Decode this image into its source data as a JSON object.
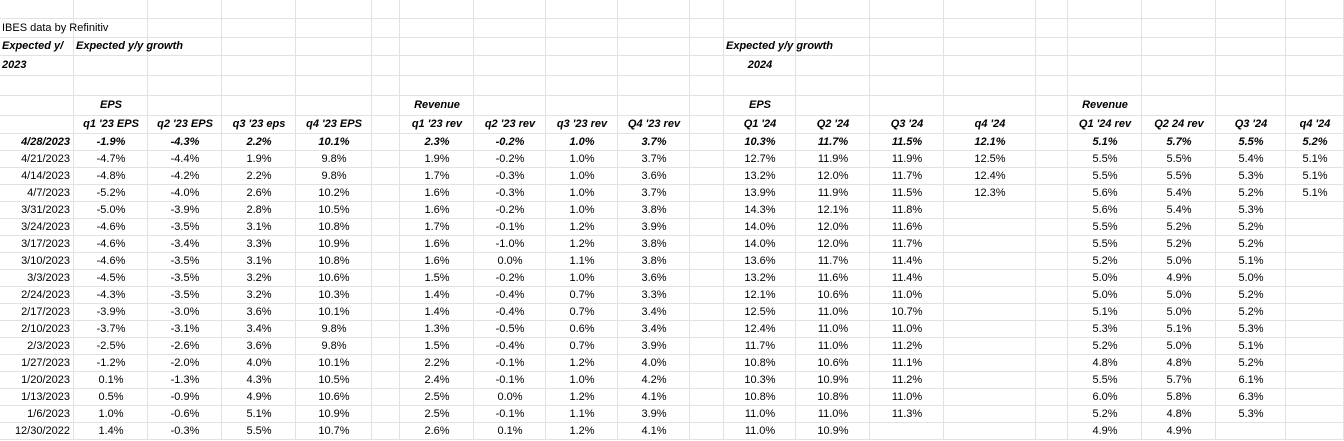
{
  "header": {
    "source": "IBES data by Refinitiv",
    "label_2023_clipped": "Expected y/",
    "label_2023": "Expected y/y growth",
    "label_2024": "Expected y/y growth",
    "year_2023": "2023",
    "year_2024": "2024"
  },
  "groups": [
    "EPS",
    "Revenue",
    "EPS",
    "Revenue"
  ],
  "table": {
    "columns": [
      "q1 '23 EPS",
      "q2 '23 EPS",
      "q3 '23 eps",
      "q4 '23 EPS",
      "q1 '23 rev",
      "q2 '23 rev",
      "q3 '23 rev",
      "Q4 '23 rev",
      "Q1 '24",
      "Q2 '24",
      "Q3 '24",
      "q4 '24",
      "Q1 '24 rev",
      "Q2 24 rev",
      "Q3 '24",
      "q4 '24"
    ],
    "rows": [
      [
        "4/28/2023",
        "-1.9%",
        "-4.3%",
        "2.2%",
        "10.1%",
        "2.3%",
        "-0.2%",
        "1.0%",
        "3.7%",
        "10.3%",
        "11.7%",
        "11.5%",
        "12.1%",
        "5.1%",
        "5.7%",
        "5.5%",
        "5.2%"
      ],
      [
        "4/21/2023",
        "-4.7%",
        "-4.4%",
        "1.9%",
        "9.8%",
        "1.9%",
        "-0.2%",
        "1.0%",
        "3.7%",
        "12.7%",
        "11.9%",
        "11.9%",
        "12.5%",
        "5.5%",
        "5.5%",
        "5.4%",
        "5.1%"
      ],
      [
        "4/14/2023",
        "-4.8%",
        "-4.2%",
        "2.2%",
        "9.8%",
        "1.7%",
        "-0.3%",
        "1.0%",
        "3.6%",
        "13.2%",
        "12.0%",
        "11.7%",
        "12.4%",
        "5.5%",
        "5.5%",
        "5.3%",
        "5.1%"
      ],
      [
        "4/7/2023",
        "-5.2%",
        "-4.0%",
        "2.6%",
        "10.2%",
        "1.6%",
        "-0.3%",
        "1.0%",
        "3.7%",
        "13.9%",
        "11.9%",
        "11.5%",
        "12.3%",
        "5.6%",
        "5.4%",
        "5.2%",
        "5.1%"
      ],
      [
        "3/31/2023",
        "-5.0%",
        "-3.9%",
        "2.8%",
        "10.5%",
        "1.6%",
        "-0.2%",
        "1.0%",
        "3.8%",
        "14.3%",
        "12.1%",
        "11.8%",
        null,
        "5.6%",
        "5.4%",
        "5.3%",
        null
      ],
      [
        "3/24/2023",
        "-4.6%",
        "-3.5%",
        "3.1%",
        "10.8%",
        "1.7%",
        "-0.1%",
        "1.2%",
        "3.9%",
        "14.0%",
        "12.0%",
        "11.6%",
        null,
        "5.5%",
        "5.2%",
        "5.2%",
        null
      ],
      [
        "3/17/2023",
        "-4.6%",
        "-3.4%",
        "3.3%",
        "10.9%",
        "1.6%",
        "-1.0%",
        "1.2%",
        "3.8%",
        "14.0%",
        "12.0%",
        "11.7%",
        null,
        "5.5%",
        "5.2%",
        "5.2%",
        null
      ],
      [
        "3/10/2023",
        "-4.6%",
        "-3.5%",
        "3.1%",
        "10.8%",
        "1.6%",
        "0.0%",
        "1.1%",
        "3.8%",
        "13.6%",
        "11.7%",
        "11.4%",
        null,
        "5.2%",
        "5.0%",
        "5.1%",
        null
      ],
      [
        "3/3/2023",
        "-4.5%",
        "-3.5%",
        "3.2%",
        "10.6%",
        "1.5%",
        "-0.2%",
        "1.0%",
        "3.6%",
        "13.2%",
        "11.6%",
        "11.4%",
        null,
        "5.0%",
        "4.9%",
        "5.0%",
        null
      ],
      [
        "2/24/2023",
        "-4.3%",
        "-3.5%",
        "3.2%",
        "10.3%",
        "1.4%",
        "-0.4%",
        "0.7%",
        "3.3%",
        "12.1%",
        "10.6%",
        "11.0%",
        null,
        "5.0%",
        "5.0%",
        "5.2%",
        null
      ],
      [
        "2/17/2023",
        "-3.9%",
        "-3.0%",
        "3.6%",
        "10.1%",
        "1.4%",
        "-0.4%",
        "0.7%",
        "3.4%",
        "12.5%",
        "11.0%",
        "10.7%",
        null,
        "5.1%",
        "5.0%",
        "5.2%",
        null
      ],
      [
        "2/10/2023",
        "-3.7%",
        "-3.1%",
        "3.4%",
        "9.8%",
        "1.3%",
        "-0.5%",
        "0.6%",
        "3.4%",
        "12.4%",
        "11.0%",
        "11.0%",
        null,
        "5.3%",
        "5.1%",
        "5.3%",
        null
      ],
      [
        "2/3/2023",
        "-2.5%",
        "-2.6%",
        "3.6%",
        "9.8%",
        "1.5%",
        "-0.4%",
        "0.7%",
        "3.9%",
        "11.7%",
        "11.0%",
        "11.2%",
        null,
        "5.2%",
        "5.0%",
        "5.1%",
        null
      ],
      [
        "1/27/2023",
        "-1.2%",
        "-2.0%",
        "4.0%",
        "10.1%",
        "2.2%",
        "-0.1%",
        "1.2%",
        "4.0%",
        "10.8%",
        "10.6%",
        "11.1%",
        null,
        "4.8%",
        "4.8%",
        "5.2%",
        null
      ],
      [
        "1/20/2023",
        "0.1%",
        "-1.3%",
        "4.3%",
        "10.5%",
        "2.4%",
        "-0.1%",
        "1.0%",
        "4.2%",
        "10.3%",
        "10.9%",
        "11.2%",
        null,
        "5.5%",
        "5.7%",
        "6.1%",
        null
      ],
      [
        "1/13/2023",
        "0.5%",
        "-0.9%",
        "4.9%",
        "10.6%",
        "2.5%",
        "0.0%",
        "1.2%",
        "4.1%",
        "10.8%",
        "10.8%",
        "11.0%",
        null,
        "6.0%",
        "5.8%",
        "6.3%",
        null
      ],
      [
        "1/6/2023",
        "1.0%",
        "-0.6%",
        "5.1%",
        "10.9%",
        "2.5%",
        "-0.1%",
        "1.1%",
        "3.9%",
        "11.0%",
        "11.0%",
        "11.3%",
        null,
        "5.2%",
        "4.8%",
        "5.3%",
        null
      ],
      [
        "12/30/2022",
        "1.4%",
        "-0.3%",
        "5.5%",
        "10.7%",
        "2.6%",
        "0.1%",
        "1.2%",
        "4.1%",
        "11.0%",
        "10.9%",
        null,
        null,
        "4.9%",
        "4.9%",
        null,
        null
      ]
    ]
  }
}
